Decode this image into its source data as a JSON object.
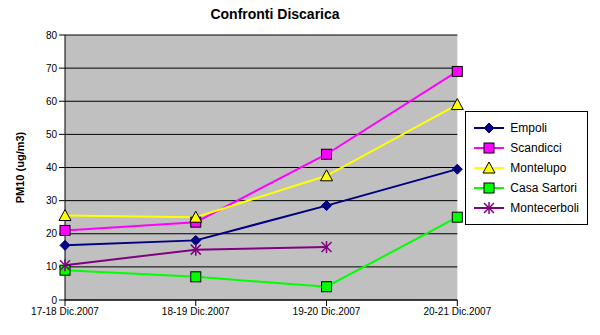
{
  "chart_data": {
    "type": "line",
    "title": "Confronti Discarica",
    "y_label": "PM10 (ug/m3)",
    "categories": [
      "17-18 Dic.2007",
      "18-19 Dic.2007",
      "19-20 Dic.2007",
      "20-21 Dic.2007"
    ],
    "series": [
      {
        "name": "Empoli",
        "color": "#000080",
        "marker": "diamond",
        "values": [
          16.5,
          18,
          28.5,
          39.5
        ]
      },
      {
        "name": "Scandicci",
        "color": "#FF00FF",
        "marker": "square",
        "values": [
          21,
          23.5,
          44,
          69
        ]
      },
      {
        "name": "Montelupo",
        "color": "#FFFF00",
        "marker": "triangle",
        "values": [
          25.5,
          25,
          37.5,
          59
        ]
      },
      {
        "name": "Casa Sartori",
        "color": "#00FF00",
        "marker": "square",
        "values": [
          9,
          7,
          4,
          25
        ]
      },
      {
        "name": "Montecerboli",
        "color": "#800080",
        "marker": "star",
        "values": [
          10.5,
          15.2,
          16,
          null
        ]
      }
    ],
    "ylim": [
      0,
      80
    ],
    "yticks": [
      0,
      10,
      20,
      30,
      40,
      50,
      60,
      70,
      80
    ],
    "grid": true,
    "legend": "right"
  }
}
